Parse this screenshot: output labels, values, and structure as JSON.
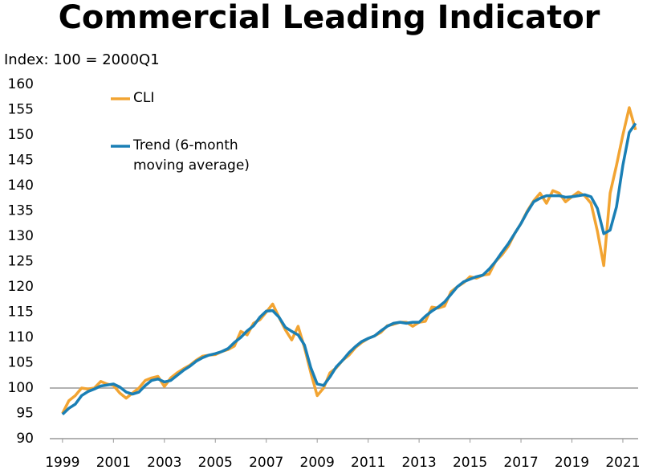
{
  "chart_data": {
    "type": "line",
    "title": "Commercial Leading Indicator",
    "y_label": "Index: 100 = 2000Q1",
    "x": [
      1999,
      1999.25,
      1999.5,
      1999.75,
      2000,
      2000.25,
      2000.5,
      2000.75,
      2001,
      2001.25,
      2001.5,
      2001.75,
      2002,
      2002.25,
      2002.5,
      2002.75,
      2003,
      2003.25,
      2003.5,
      2003.75,
      2004,
      2004.25,
      2004.5,
      2004.75,
      2005,
      2005.25,
      2005.5,
      2005.75,
      2006,
      2006.25,
      2006.5,
      2006.75,
      2007,
      2007.25,
      2007.5,
      2007.75,
      2008,
      2008.25,
      2008.5,
      2008.75,
      2009,
      2009.25,
      2009.5,
      2009.75,
      2010,
      2010.25,
      2010.5,
      2010.75,
      2011,
      2011.25,
      2011.5,
      2011.75,
      2012,
      2012.25,
      2012.5,
      2012.75,
      2013,
      2013.25,
      2013.5,
      2013.75,
      2014,
      2014.25,
      2014.5,
      2014.75,
      2015,
      2015.25,
      2015.5,
      2015.75,
      2016,
      2016.25,
      2016.5,
      2016.75,
      2017,
      2017.25,
      2017.5,
      2017.75,
      2018,
      2018.25,
      2018.5,
      2018.75,
      2019,
      2019.25,
      2019.5,
      2019.75,
      2020,
      2020.25,
      2020.5,
      2020.75,
      2021,
      2021.25,
      2021.5
    ],
    "series": [
      {
        "name": "CLI",
        "color": "#f2a432",
        "values": [
          95,
          97.5,
          98.5,
          100,
          99.8,
          100,
          101.3,
          100.8,
          100.5,
          99,
          98,
          99,
          100,
          101.5,
          102,
          102.3,
          100.3,
          102,
          103,
          103.8,
          104.5,
          105.5,
          106.3,
          106.5,
          106.6,
          107.2,
          107.6,
          108.3,
          111.2,
          110.5,
          112.8,
          113.5,
          115,
          116.6,
          114,
          111.5,
          109.5,
          112.2,
          108,
          103,
          98.5,
          100,
          103,
          104,
          105.5,
          106.5,
          108,
          109,
          109.8,
          110.3,
          111,
          112.3,
          112.6,
          113,
          113,
          112.2,
          113,
          113.2,
          116,
          115.8,
          116.2,
          119,
          120,
          120.8,
          122,
          121.7,
          122.3,
          122.5,
          125,
          126.3,
          128,
          130.5,
          132.5,
          135,
          137,
          138.5,
          136.5,
          139,
          138.5,
          136.8,
          137.8,
          138.7,
          138,
          136.5,
          131,
          124.2,
          138.5,
          144,
          150,
          155.4,
          151
        ]
      },
      {
        "name": "Trend (6-month moving average)",
        "color": "#1a7fb5",
        "values": [
          94.8,
          96,
          96.8,
          98.5,
          99.3,
          99.8,
          100.4,
          100.6,
          100.8,
          100.2,
          99.2,
          98.8,
          99.2,
          100.5,
          101.5,
          101.8,
          101.2,
          101.5,
          102.5,
          103.5,
          104.3,
          105.3,
          106,
          106.5,
          106.8,
          107.2,
          107.8,
          109,
          110,
          111.3,
          112.3,
          114,
          115.2,
          115.3,
          114,
          112,
          111.2,
          110.5,
          108.5,
          104,
          100.8,
          100.5,
          102.2,
          104.2,
          105.5,
          107,
          108.2,
          109.2,
          109.8,
          110.3,
          111.3,
          112.2,
          112.8,
          113,
          112.8,
          113,
          113,
          114.2,
          115.2,
          116,
          117,
          118.5,
          120,
          121,
          121.5,
          122,
          122.3,
          123.5,
          125,
          126.8,
          128.5,
          130.5,
          132.5,
          134.8,
          136.8,
          137.5,
          138,
          138,
          138,
          137.7,
          137.8,
          138,
          138.2,
          137.8,
          135.5,
          130.5,
          131.2,
          135.8,
          144,
          150.5,
          152.3
        ]
      }
    ],
    "xlim": [
      1998.5,
      2021.6
    ],
    "xticks": [
      1999,
      2001,
      2003,
      2005,
      2007,
      2009,
      2011,
      2013,
      2015,
      2017,
      2019,
      2021
    ],
    "ylim": [
      90,
      160
    ],
    "yticks": [
      90,
      95,
      100,
      105,
      110,
      115,
      120,
      125,
      130,
      135,
      140,
      145,
      150,
      155,
      160
    ],
    "reference_line": 100
  }
}
